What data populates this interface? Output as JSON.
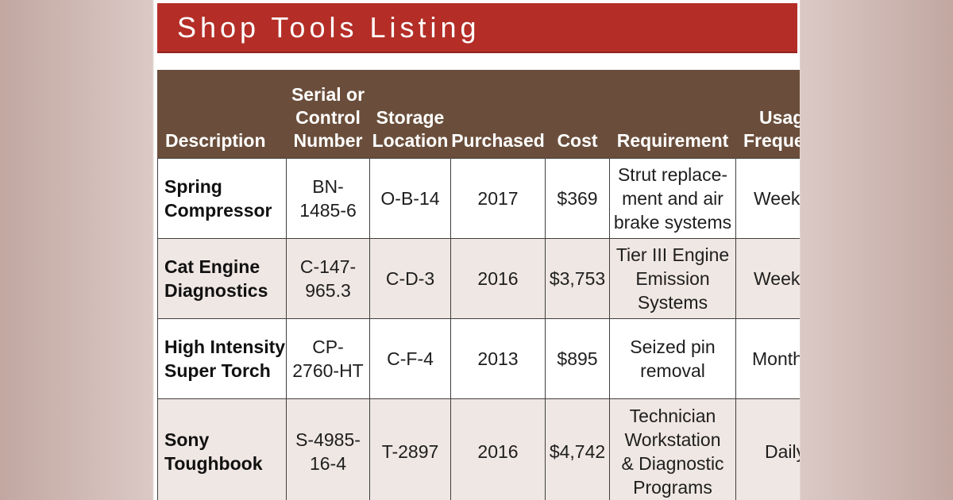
{
  "title": "Shop Tools Listing",
  "headers": {
    "description": "Description",
    "serial": [
      "Serial or",
      "Control",
      "Number"
    ],
    "storage": [
      "Storage",
      "Location"
    ],
    "purchased": "Purchased",
    "cost": "Cost",
    "requirement": "Requirement",
    "usage": [
      "Usag",
      "Frequen"
    ]
  },
  "rows": [
    {
      "description": [
        "Spring",
        "Compressor"
      ],
      "serial": [
        "BN-",
        "1485-6"
      ],
      "storage": "O-B-14",
      "purchased": "2017",
      "cost": "$369",
      "requirement": [
        "Strut replace-",
        "ment and air",
        "brake systems"
      ],
      "usage": "Week"
    },
    {
      "description": [
        "Cat Engine",
        "Diagnostics"
      ],
      "serial": [
        "C-147-",
        "965.3"
      ],
      "storage": "C-D-3",
      "purchased": "2016",
      "cost": "$3,753",
      "requirement": [
        "Tier III Engine",
        "Emission",
        "Systems"
      ],
      "usage": "Week"
    },
    {
      "description": [
        "High Intensity",
        "Super Torch"
      ],
      "serial": [
        "CP-",
        "2760-HT"
      ],
      "storage": "C-F-4",
      "purchased": "2013",
      "cost": "$895",
      "requirement": [
        "Seized pin",
        "removal"
      ],
      "usage": "Month"
    },
    {
      "description": [
        "Sony",
        "Toughbook"
      ],
      "serial": [
        "S-4985-",
        "16-4"
      ],
      "storage": "T-2897",
      "purchased": "2016",
      "cost": "$4,742",
      "requirement": [
        "Technician",
        "Workstation",
        "& Diagnostic",
        "Programs"
      ],
      "usage": "Daily"
    }
  ],
  "colors": {
    "title_bar": "#b42e27",
    "header_row": "#6a4e3b",
    "row_alt": "#efe7e3",
    "background_side": "#c2a7a1"
  }
}
